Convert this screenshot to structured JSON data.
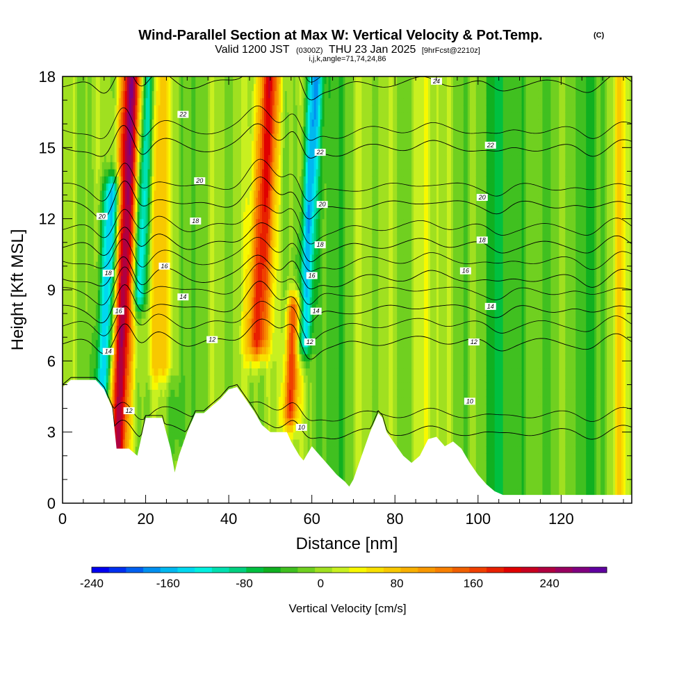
{
  "chart_data": {
    "type": "heatmap",
    "title": "Wind-Parallel Section at Max W: Vertical Velocity & Pot.Temp.",
    "title_mark": "(C)",
    "subtitle": {
      "valid_label": "Valid 1200 JST",
      "utc_time": "(0300Z)",
      "date": "THU 23 Jan 2025",
      "forecast": "[9hrFcst@2210z]",
      "indices": "i,j,k,angle=71,74,24,86"
    },
    "xlabel": "Distance [nm]",
    "ylabel": "Height [Kft MSL]",
    "xlim": [
      0,
      137
    ],
    "ylim": [
      0,
      18
    ],
    "x_ticks": [
      0,
      20,
      40,
      60,
      80,
      100,
      120
    ],
    "x_tick_labels": [
      "0",
      "20",
      "40",
      "60",
      "80",
      "100",
      "120"
    ],
    "y_ticks": [
      0,
      3,
      6,
      9,
      12,
      15,
      18
    ],
    "y_tick_labels": [
      "0",
      "3",
      "6",
      "9",
      "12",
      "15",
      "18"
    ],
    "colorbar": {
      "label": "Vertical Velocity [cm/s]",
      "min": -240,
      "max": 300,
      "step": 20,
      "tick_values": [
        -240,
        -160,
        -80,
        0,
        80,
        160,
        240
      ],
      "tick_labels": [
        "-240",
        "-160",
        "-80",
        "0",
        "80",
        "160",
        "240"
      ],
      "colors": [
        "#0000f0",
        "#0030f0",
        "#0060f0",
        "#0090f0",
        "#00b8f0",
        "#00d8f0",
        "#00f0e0",
        "#00e0b0",
        "#00d080",
        "#00c040",
        "#10b020",
        "#40c020",
        "#70d020",
        "#a0e020",
        "#c8f020",
        "#f8f800",
        "#f8e000",
        "#f8c800",
        "#f8b000",
        "#f89800",
        "#f88000",
        "#f06000",
        "#f04000",
        "#e82000",
        "#e00000",
        "#c80020",
        "#b00040",
        "#980060",
        "#800080",
        "#6000a0"
      ]
    },
    "vertical_velocity_features": [
      {
        "type": "updraft",
        "x": 14.5,
        "width": 2.6,
        "peak_cms": 280,
        "z_range": [
          2.3,
          18
        ]
      },
      {
        "type": "downdraft",
        "x": 11.0,
        "width": 2.2,
        "peak_cms": -200,
        "z_range": [
          4.0,
          13.0
        ]
      },
      {
        "type": "downdraft",
        "x": 18.5,
        "width": 1.8,
        "peak_cms": -160,
        "z_range": [
          9.0,
          18
        ]
      },
      {
        "type": "updraft",
        "x": 24.0,
        "width": 3.5,
        "peak_cms": 90,
        "z_range": [
          6.0,
          18
        ]
      },
      {
        "type": "downdraft",
        "x": 29.0,
        "width": 3.0,
        "peak_cms": -40,
        "z_range": [
          3.0,
          18
        ]
      },
      {
        "type": "updraft",
        "x": 47.5,
        "width": 2.6,
        "peak_cms": 220,
        "z_range": [
          7.0,
          18
        ]
      },
      {
        "type": "updraft",
        "x": 56.0,
        "width": 1.8,
        "peak_cms": 200,
        "z_range": [
          4.0,
          8.0
        ]
      },
      {
        "type": "downdraft",
        "x": 58.5,
        "width": 1.8,
        "peak_cms": -180,
        "z_range": [
          7.0,
          18
        ]
      },
      {
        "type": "downdraft",
        "x": 65.0,
        "width": 3.0,
        "peak_cms": -50,
        "z_range": [
          1.0,
          18
        ]
      },
      {
        "type": "updraft",
        "x": 88.0,
        "width": 2.5,
        "peak_cms": 40,
        "z_range": [
          2.0,
          18
        ]
      },
      {
        "type": "downdraft",
        "x": 105.0,
        "width": 2.0,
        "peak_cms": -60,
        "z_range": [
          0.5,
          18
        ]
      },
      {
        "type": "downdraft",
        "x": 127.0,
        "width": 2.0,
        "peak_cms": -60,
        "z_range": [
          0.5,
          18
        ]
      },
      {
        "type": "updraft",
        "x": 134.0,
        "width": 2.0,
        "peak_cms": 60,
        "z_range": [
          0.5,
          18
        ]
      }
    ],
    "terrain_kft": {
      "x": [
        0,
        2,
        8,
        10,
        12,
        13,
        15,
        16,
        18,
        20,
        21,
        24,
        26,
        27,
        28,
        30,
        32,
        34,
        36,
        38,
        40,
        42,
        44,
        46,
        48,
        50,
        52,
        54,
        55,
        57,
        58,
        60,
        62,
        64,
        66,
        68,
        69,
        70,
        72,
        74,
        76,
        77,
        78,
        80,
        82,
        84,
        86,
        88,
        90,
        92,
        94,
        96,
        98,
        100,
        102,
        104,
        106,
        110,
        137
      ],
      "z": [
        4.9,
        5.2,
        5.2,
        4.8,
        4.0,
        2.3,
        2.3,
        2.3,
        2.0,
        3.6,
        3.6,
        3.6,
        2.3,
        1.3,
        2.0,
        3.0,
        3.8,
        3.8,
        4.1,
        4.4,
        4.8,
        4.9,
        4.4,
        3.9,
        3.3,
        3.0,
        3.0,
        3.0,
        2.6,
        2.0,
        1.8,
        2.4,
        2.0,
        1.6,
        1.2,
        0.9,
        0.7,
        1.0,
        2.0,
        3.0,
        3.8,
        3.6,
        3.0,
        2.5,
        2.0,
        1.7,
        2.0,
        2.7,
        2.8,
        2.4,
        2.6,
        2.3,
        1.7,
        1.2,
        0.8,
        0.5,
        0.35,
        0.35,
        0.35
      ]
    },
    "potential_temperature_contours": [
      {
        "value": 10,
        "label": "10",
        "z_base": 3.0,
        "label_points": [
          {
            "x": 57.5,
            "z": 3.2
          },
          {
            "x": 98,
            "z": 4.3
          }
        ]
      },
      {
        "value": 12,
        "label": "12",
        "z_base": 6.8,
        "label_points": [
          {
            "x": 16,
            "z": 3.9
          },
          {
            "x": 36,
            "z": 6.9
          },
          {
            "x": 59.5,
            "z": 6.8
          },
          {
            "x": 99,
            "z": 6.8
          }
        ]
      },
      {
        "value": 14,
        "label": "14",
        "z_base": 8.2,
        "label_points": [
          {
            "x": 11,
            "z": 6.4
          },
          {
            "x": 29,
            "z": 8.7
          },
          {
            "x": 61,
            "z": 8.1
          },
          {
            "x": 103,
            "z": 8.3
          }
        ]
      },
      {
        "value": 16,
        "label": "16",
        "z_base": 9.5,
        "label_points": [
          {
            "x": 13.5,
            "z": 8.1
          },
          {
            "x": 24.5,
            "z": 10.0
          },
          {
            "x": 60,
            "z": 9.6
          },
          {
            "x": 97,
            "z": 9.8
          }
        ]
      },
      {
        "value": 18,
        "label": "18",
        "z_base": 10.9,
        "label_points": [
          {
            "x": 11,
            "z": 9.7
          },
          {
            "x": 32,
            "z": 11.9
          },
          {
            "x": 62,
            "z": 10.9
          },
          {
            "x": 101,
            "z": 11.1
          }
        ]
      },
      {
        "value": 20,
        "label": "20",
        "z_base": 12.6,
        "label_points": [
          {
            "x": 9.5,
            "z": 12.1
          },
          {
            "x": 33,
            "z": 13.6
          },
          {
            "x": 62.5,
            "z": 12.6
          },
          {
            "x": 101,
            "z": 12.9
          }
        ]
      },
      {
        "value": 22,
        "label": "22",
        "z_base": 15.0,
        "label_points": [
          {
            "x": 29,
            "z": 16.4
          },
          {
            "x": 62,
            "z": 14.8
          },
          {
            "x": 103,
            "z": 15.1
          }
        ]
      },
      {
        "value": 24,
        "label": "24",
        "z_base": 17.7,
        "label_points": [
          {
            "x": 90,
            "z": 17.8
          }
        ]
      }
    ]
  }
}
